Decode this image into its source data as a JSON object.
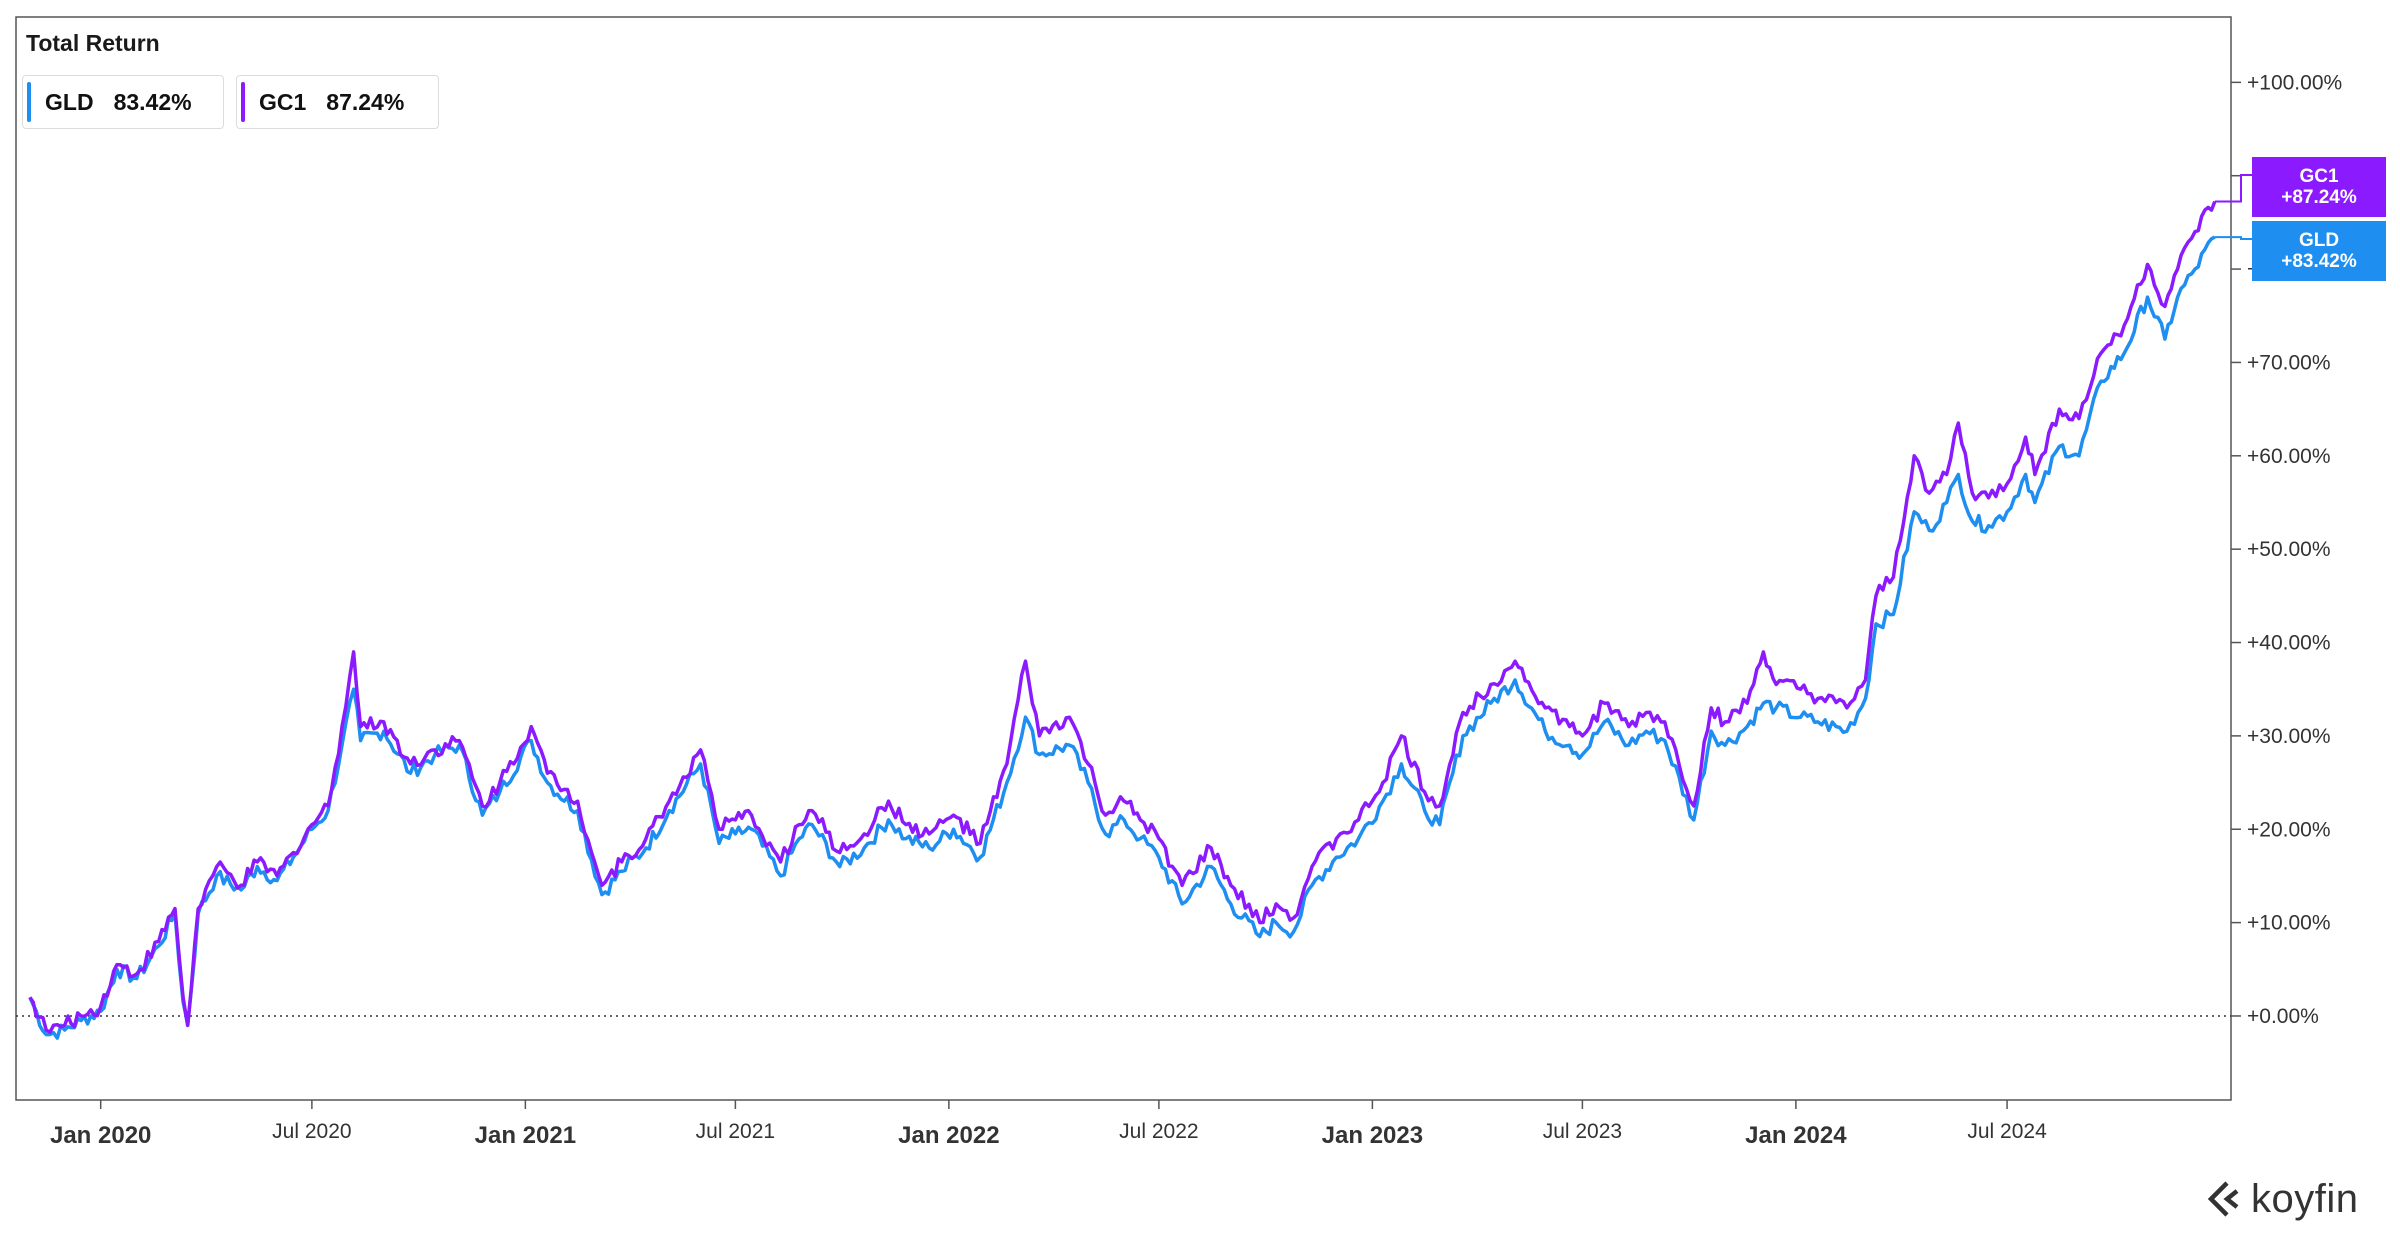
{
  "chart_data": {
    "type": "line",
    "title": "Total Return",
    "ylim": [
      -9,
      107
    ],
    "grid": false,
    "legend_placement": "top-left",
    "y_ticks": [
      {
        "value": 100,
        "label": "+100.00%"
      },
      {
        "value": 90,
        "label": "+90.00%"
      },
      {
        "value": 80,
        "label": "+80.00%"
      },
      {
        "value": 70,
        "label": "+70.00%"
      },
      {
        "value": 60,
        "label": "+60.00%"
      },
      {
        "value": 50,
        "label": "+50.00%"
      },
      {
        "value": 40,
        "label": "+40.00%"
      },
      {
        "value": 30,
        "label": "+30.00%"
      },
      {
        "value": 20,
        "label": "+20.00%"
      },
      {
        "value": 10,
        "label": "+10.00%"
      },
      {
        "value": 0,
        "label": "+0.00%"
      }
    ],
    "x_ticks": [
      {
        "date": "2020-01-01",
        "label": "Jan 2020",
        "major": true
      },
      {
        "date": "2020-07-01",
        "label": "Jul 2020",
        "major": false
      },
      {
        "date": "2021-01-01",
        "label": "Jan 2021",
        "major": true
      },
      {
        "date": "2021-07-01",
        "label": "Jul 2021",
        "major": false
      },
      {
        "date": "2022-01-01",
        "label": "Jan 2022",
        "major": true
      },
      {
        "date": "2022-07-01",
        "label": "Jul 2022",
        "major": false
      },
      {
        "date": "2023-01-01",
        "label": "Jan 2023",
        "major": true
      },
      {
        "date": "2023-07-01",
        "label": "Jul 2023",
        "major": false
      },
      {
        "date": "2024-01-01",
        "label": "Jan 2024",
        "major": true
      },
      {
        "date": "2024-07-01",
        "label": "Jul 2024",
        "major": false
      }
    ],
    "series": [
      {
        "name": "GLD",
        "legend_value": "83.42%",
        "end_label": "+83.42%",
        "color": "#1e8ef0",
        "points": [
          [
            "2019-11-01",
            2
          ],
          [
            "2019-11-15",
            -2
          ],
          [
            "2019-12-01",
            -1.5
          ],
          [
            "2019-12-15",
            -0.5
          ],
          [
            "2020-01-01",
            0.5
          ],
          [
            "2020-01-15",
            5
          ],
          [
            "2020-02-01",
            4
          ],
          [
            "2020-02-20",
            7.5
          ],
          [
            "2020-03-05",
            11
          ],
          [
            "2020-03-12",
            1.5
          ],
          [
            "2020-03-16",
            -1
          ],
          [
            "2020-03-25",
            11
          ],
          [
            "2020-04-10",
            15
          ],
          [
            "2020-05-01",
            13.5
          ],
          [
            "2020-05-15",
            16
          ],
          [
            "2020-06-01",
            14.5
          ],
          [
            "2020-06-15",
            17
          ],
          [
            "2020-07-01",
            20
          ],
          [
            "2020-07-15",
            22
          ],
          [
            "2020-07-27",
            29
          ],
          [
            "2020-08-06",
            35
          ],
          [
            "2020-08-12",
            29.5
          ],
          [
            "2020-09-01",
            30.5
          ],
          [
            "2020-09-24",
            26
          ],
          [
            "2020-10-15",
            28
          ],
          [
            "2020-11-05",
            29
          ],
          [
            "2020-11-25",
            21.5
          ],
          [
            "2020-12-10",
            24
          ],
          [
            "2021-01-06",
            29.5
          ],
          [
            "2021-01-20",
            25
          ],
          [
            "2021-02-15",
            22
          ],
          [
            "2021-03-08",
            13
          ],
          [
            "2021-03-25",
            15.5
          ],
          [
            "2021-04-15",
            18
          ],
          [
            "2021-05-05",
            22
          ],
          [
            "2021-06-01",
            27
          ],
          [
            "2021-06-17",
            18.5
          ],
          [
            "2021-07-01",
            19.5
          ],
          [
            "2021-07-15",
            20
          ],
          [
            "2021-08-09",
            15
          ],
          [
            "2021-08-25",
            19
          ],
          [
            "2021-09-05",
            20.5
          ],
          [
            "2021-09-29",
            16
          ],
          [
            "2021-10-20",
            18
          ],
          [
            "2021-11-10",
            21
          ],
          [
            "2021-11-25",
            19
          ],
          [
            "2021-12-15",
            18
          ],
          [
            "2022-01-05",
            20
          ],
          [
            "2022-01-28",
            17
          ],
          [
            "2022-02-20",
            25
          ],
          [
            "2022-03-08",
            32
          ],
          [
            "2022-03-20",
            28
          ],
          [
            "2022-04-15",
            29
          ],
          [
            "2022-05-01",
            25
          ],
          [
            "2022-05-16",
            19.5
          ],
          [
            "2022-06-01",
            21
          ],
          [
            "2022-06-15",
            19
          ],
          [
            "2022-07-01",
            17
          ],
          [
            "2022-07-21",
            12
          ],
          [
            "2022-08-15",
            16
          ],
          [
            "2022-09-01",
            12
          ],
          [
            "2022-09-26",
            8.5
          ],
          [
            "2022-10-10",
            10
          ],
          [
            "2022-10-25",
            9
          ],
          [
            "2022-11-10",
            14
          ],
          [
            "2022-12-01",
            17
          ],
          [
            "2022-12-20",
            19
          ],
          [
            "2023-01-10",
            23
          ],
          [
            "2023-01-26",
            27
          ],
          [
            "2023-02-15",
            22
          ],
          [
            "2023-02-28",
            20.5
          ],
          [
            "2023-03-20",
            30
          ],
          [
            "2023-04-13",
            33.5
          ],
          [
            "2023-05-04",
            36
          ],
          [
            "2023-05-30",
            30.5
          ],
          [
            "2023-06-20",
            29
          ],
          [
            "2023-07-01",
            28
          ],
          [
            "2023-07-20",
            31.5
          ],
          [
            "2023-08-10",
            29
          ],
          [
            "2023-08-25",
            30.5
          ],
          [
            "2023-09-10",
            29.5
          ],
          [
            "2023-10-05",
            21
          ],
          [
            "2023-10-20",
            30.5
          ],
          [
            "2023-11-01",
            29
          ],
          [
            "2023-11-20",
            31
          ],
          [
            "2023-12-04",
            33.5
          ],
          [
            "2023-12-15",
            33
          ],
          [
            "2024-01-05",
            32
          ],
          [
            "2024-01-20",
            31.5
          ],
          [
            "2024-02-14",
            30.5
          ],
          [
            "2024-03-01",
            34
          ],
          [
            "2024-03-10",
            42
          ],
          [
            "2024-03-25",
            43
          ],
          [
            "2024-04-12",
            54
          ],
          [
            "2024-04-25",
            52
          ],
          [
            "2024-05-10",
            55
          ],
          [
            "2024-05-20",
            58
          ],
          [
            "2024-06-01",
            53
          ],
          [
            "2024-06-15",
            52.5
          ],
          [
            "2024-07-01",
            54
          ],
          [
            "2024-07-17",
            58
          ],
          [
            "2024-07-25",
            55
          ],
          [
            "2024-08-15",
            61
          ],
          [
            "2024-09-01",
            60
          ],
          [
            "2024-09-20",
            68
          ],
          [
            "2024-10-10",
            71
          ],
          [
            "2024-10-30",
            77
          ],
          [
            "2024-11-14",
            72.5
          ],
          [
            "2024-11-25",
            77
          ],
          [
            "2024-12-10",
            80
          ],
          [
            "2024-12-27",
            83.42
          ]
        ]
      },
      {
        "name": "GC1",
        "legend_value": "87.24%",
        "end_label": "+87.24%",
        "color": "#8c1aff",
        "points": [
          [
            "2019-11-01",
            2
          ],
          [
            "2019-11-15",
            -1.5
          ],
          [
            "2019-12-01",
            -1
          ],
          [
            "2019-12-15",
            0
          ],
          [
            "2020-01-01",
            1
          ],
          [
            "2020-01-15",
            5.5
          ],
          [
            "2020-02-01",
            4.5
          ],
          [
            "2020-02-20",
            8
          ],
          [
            "2020-03-05",
            11.5
          ],
          [
            "2020-03-12",
            2
          ],
          [
            "2020-03-16",
            -1
          ],
          [
            "2020-03-25",
            11.5
          ],
          [
            "2020-04-10",
            16
          ],
          [
            "2020-05-01",
            14
          ],
          [
            "2020-05-15",
            16.5
          ],
          [
            "2020-06-01",
            15
          ],
          [
            "2020-06-15",
            17.5
          ],
          [
            "2020-07-01",
            20.5
          ],
          [
            "2020-07-15",
            22.5
          ],
          [
            "2020-07-27",
            31
          ],
          [
            "2020-08-06",
            39
          ],
          [
            "2020-08-12",
            31
          ],
          [
            "2020-09-01",
            31.5
          ],
          [
            "2020-09-24",
            27
          ],
          [
            "2020-10-15",
            28.5
          ],
          [
            "2020-11-05",
            29.5
          ],
          [
            "2020-11-25",
            22.5
          ],
          [
            "2020-12-10",
            25
          ],
          [
            "2021-01-06",
            31
          ],
          [
            "2021-01-20",
            26
          ],
          [
            "2021-02-15",
            23
          ],
          [
            "2021-03-08",
            14
          ],
          [
            "2021-03-25",
            16.5
          ],
          [
            "2021-04-15",
            19
          ],
          [
            "2021-05-05",
            23
          ],
          [
            "2021-06-01",
            28.5
          ],
          [
            "2021-06-17",
            20
          ],
          [
            "2021-07-01",
            21
          ],
          [
            "2021-07-15",
            21.5
          ],
          [
            "2021-08-09",
            16.5
          ],
          [
            "2021-08-25",
            20.5
          ],
          [
            "2021-09-05",
            22
          ],
          [
            "2021-09-29",
            17.5
          ],
          [
            "2021-10-20",
            19.5
          ],
          [
            "2021-11-10",
            23
          ],
          [
            "2021-11-25",
            20.5
          ],
          [
            "2021-12-15",
            19.5
          ],
          [
            "2022-01-05",
            21.5
          ],
          [
            "2022-01-28",
            18.5
          ],
          [
            "2022-02-20",
            27
          ],
          [
            "2022-03-08",
            38
          ],
          [
            "2022-03-20",
            30
          ],
          [
            "2022-04-15",
            32
          ],
          [
            "2022-05-01",
            27
          ],
          [
            "2022-05-16",
            21.5
          ],
          [
            "2022-06-01",
            23
          ],
          [
            "2022-06-15",
            21
          ],
          [
            "2022-07-01",
            19
          ],
          [
            "2022-07-21",
            14
          ],
          [
            "2022-08-15",
            18
          ],
          [
            "2022-09-01",
            14
          ],
          [
            "2022-09-26",
            10
          ],
          [
            "2022-10-10",
            12
          ],
          [
            "2022-10-25",
            10.5
          ],
          [
            "2022-11-10",
            16
          ],
          [
            "2022-12-01",
            19
          ],
          [
            "2022-12-20",
            21
          ],
          [
            "2023-01-10",
            25
          ],
          [
            "2023-01-26",
            30
          ],
          [
            "2023-02-15",
            24
          ],
          [
            "2023-02-28",
            22.5
          ],
          [
            "2023-03-20",
            32.5
          ],
          [
            "2023-04-13",
            35.5
          ],
          [
            "2023-05-04",
            38
          ],
          [
            "2023-05-30",
            33
          ],
          [
            "2023-06-20",
            31
          ],
          [
            "2023-07-01",
            30
          ],
          [
            "2023-07-20",
            33.5
          ],
          [
            "2023-08-10",
            31
          ],
          [
            "2023-08-25",
            32.5
          ],
          [
            "2023-09-10",
            31.5
          ],
          [
            "2023-10-05",
            22.5
          ],
          [
            "2023-10-20",
            33
          ],
          [
            "2023-11-01",
            31.5
          ],
          [
            "2023-11-20",
            33.5
          ],
          [
            "2023-12-04",
            39
          ],
          [
            "2023-12-15",
            35.5
          ],
          [
            "2024-01-05",
            35
          ],
          [
            "2024-01-20",
            34
          ],
          [
            "2024-02-14",
            33
          ],
          [
            "2024-03-01",
            36
          ],
          [
            "2024-03-10",
            45
          ],
          [
            "2024-03-25",
            47
          ],
          [
            "2024-04-12",
            60
          ],
          [
            "2024-04-25",
            56
          ],
          [
            "2024-05-10",
            58
          ],
          [
            "2024-05-20",
            63.5
          ],
          [
            "2024-06-01",
            56
          ],
          [
            "2024-06-15",
            55.5
          ],
          [
            "2024-07-01",
            57
          ],
          [
            "2024-07-17",
            62
          ],
          [
            "2024-07-25",
            58
          ],
          [
            "2024-08-15",
            65
          ],
          [
            "2024-09-01",
            64
          ],
          [
            "2024-09-20",
            71
          ],
          [
            "2024-10-10",
            74
          ],
          [
            "2024-10-30",
            80.5
          ],
          [
            "2024-11-14",
            76
          ],
          [
            "2024-11-25",
            80
          ],
          [
            "2024-12-10",
            84
          ],
          [
            "2024-12-27",
            87.24
          ]
        ]
      }
    ]
  },
  "legend": {
    "gld": {
      "name": "GLD",
      "value": "83.42%"
    },
    "gc1": {
      "name": "GC1",
      "value": "87.24%"
    }
  },
  "tags": {
    "gc1": {
      "name": "GC1",
      "value": "+87.24%",
      "color": "#8c1aff"
    },
    "gld": {
      "name": "GLD",
      "value": "+83.42%",
      "color": "#1e8ef0"
    }
  },
  "brand": {
    "name": "koyfin"
  }
}
